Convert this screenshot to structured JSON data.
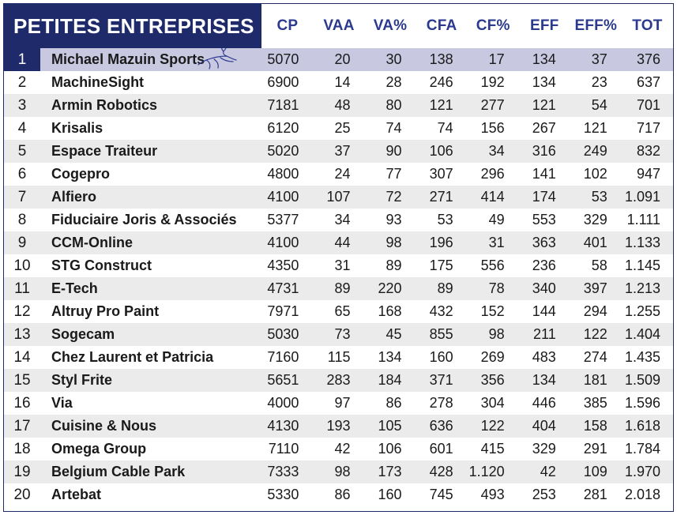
{
  "table": {
    "title": "PETITES ENTREPRISES",
    "columns": [
      "CP",
      "VAA",
      "VA%",
      "CFA",
      "CF%",
      "EFF",
      "EFF%",
      "TOT"
    ],
    "highlight_icon": "deer-logo-icon",
    "colors": {
      "header_bg": "#1f2a6b",
      "header_text": "#2b3a8e",
      "first_row_bg": "#c9c8e1",
      "alt_row_bg": "#ebebeb"
    },
    "rows": [
      {
        "rank": "1",
        "name": "Michael Mazuin Sports",
        "cp": "5070",
        "vaa": "20",
        "va_pct": "30",
        "cfa": "138",
        "cf_pct": "17",
        "eff": "134",
        "eff_pct": "37",
        "tot": "376"
      },
      {
        "rank": "2",
        "name": "MachineSight",
        "cp": "6900",
        "vaa": "14",
        "va_pct": "28",
        "cfa": "246",
        "cf_pct": "192",
        "eff": "134",
        "eff_pct": "23",
        "tot": "637"
      },
      {
        "rank": "3",
        "name": "Armin Robotics",
        "cp": "7181",
        "vaa": "48",
        "va_pct": "80",
        "cfa": "121",
        "cf_pct": "277",
        "eff": "121",
        "eff_pct": "54",
        "tot": "701"
      },
      {
        "rank": "4",
        "name": "Krisalis",
        "cp": "6120",
        "vaa": "25",
        "va_pct": "74",
        "cfa": "74",
        "cf_pct": "156",
        "eff": "267",
        "eff_pct": "121",
        "tot": "717"
      },
      {
        "rank": "5",
        "name": "Espace Traiteur",
        "cp": "5020",
        "vaa": "37",
        "va_pct": "90",
        "cfa": "106",
        "cf_pct": "34",
        "eff": "316",
        "eff_pct": "249",
        "tot": "832"
      },
      {
        "rank": "6",
        "name": "Cogepro",
        "cp": "4800",
        "vaa": "24",
        "va_pct": "77",
        "cfa": "307",
        "cf_pct": "296",
        "eff": "141",
        "eff_pct": "102",
        "tot": "947"
      },
      {
        "rank": "7",
        "name": "Alfiero",
        "cp": "4100",
        "vaa": "107",
        "va_pct": "72",
        "cfa": "271",
        "cf_pct": "414",
        "eff": "174",
        "eff_pct": "53",
        "tot": "1.091"
      },
      {
        "rank": "8",
        "name": "Fiduciaire Joris & Associés",
        "cp": "5377",
        "vaa": "34",
        "va_pct": "93",
        "cfa": "53",
        "cf_pct": "49",
        "eff": "553",
        "eff_pct": "329",
        "tot": "1.111"
      },
      {
        "rank": "9",
        "name": "CCM-Online",
        "cp": "4100",
        "vaa": "44",
        "va_pct": "98",
        "cfa": "196",
        "cf_pct": "31",
        "eff": "363",
        "eff_pct": "401",
        "tot": "1.133"
      },
      {
        "rank": "10",
        "name": "STG Construct",
        "cp": "4350",
        "vaa": "31",
        "va_pct": "89",
        "cfa": "175",
        "cf_pct": "556",
        "eff": "236",
        "eff_pct": "58",
        "tot": "1.145"
      },
      {
        "rank": "11",
        "name": "E-Tech",
        "cp": "4731",
        "vaa": "89",
        "va_pct": "220",
        "cfa": "89",
        "cf_pct": "78",
        "eff": "340",
        "eff_pct": "397",
        "tot": "1.213"
      },
      {
        "rank": "12",
        "name": "Altruy Pro Paint",
        "cp": "7971",
        "vaa": "65",
        "va_pct": "168",
        "cfa": "432",
        "cf_pct": "152",
        "eff": "144",
        "eff_pct": "294",
        "tot": "1.255"
      },
      {
        "rank": "13",
        "name": "Sogecam",
        "cp": "5030",
        "vaa": "73",
        "va_pct": "45",
        "cfa": "855",
        "cf_pct": "98",
        "eff": "211",
        "eff_pct": "122",
        "tot": "1.404"
      },
      {
        "rank": "14",
        "name": "Chez Laurent et Patricia",
        "cp": "7160",
        "vaa": "115",
        "va_pct": "134",
        "cfa": "160",
        "cf_pct": "269",
        "eff": "483",
        "eff_pct": "274",
        "tot": "1.435"
      },
      {
        "rank": "15",
        "name": "Styl Frite",
        "cp": "5651",
        "vaa": "283",
        "va_pct": "184",
        "cfa": "371",
        "cf_pct": "356",
        "eff": "134",
        "eff_pct": "181",
        "tot": "1.509"
      },
      {
        "rank": "16",
        "name": "Via",
        "cp": "4000",
        "vaa": "97",
        "va_pct": "86",
        "cfa": "278",
        "cf_pct": "304",
        "eff": "446",
        "eff_pct": "385",
        "tot": "1.596"
      },
      {
        "rank": "17",
        "name": "Cuisine & Nous",
        "cp": "4130",
        "vaa": "193",
        "va_pct": "105",
        "cfa": "636",
        "cf_pct": "122",
        "eff": "404",
        "eff_pct": "158",
        "tot": "1.618"
      },
      {
        "rank": "18",
        "name": "Omega Group",
        "cp": "7110",
        "vaa": "42",
        "va_pct": "106",
        "cfa": "601",
        "cf_pct": "415",
        "eff": "329",
        "eff_pct": "291",
        "tot": "1.784"
      },
      {
        "rank": "19",
        "name": "Belgium Cable Park",
        "cp": "7333",
        "vaa": "98",
        "va_pct": "173",
        "cfa": "428",
        "cf_pct": "1.120",
        "eff": "42",
        "eff_pct": "109",
        "tot": "1.970"
      },
      {
        "rank": "20",
        "name": "Artebat",
        "cp": "5330",
        "vaa": "86",
        "va_pct": "160",
        "cfa": "745",
        "cf_pct": "493",
        "eff": "253",
        "eff_pct": "281",
        "tot": "2.018"
      }
    ]
  }
}
